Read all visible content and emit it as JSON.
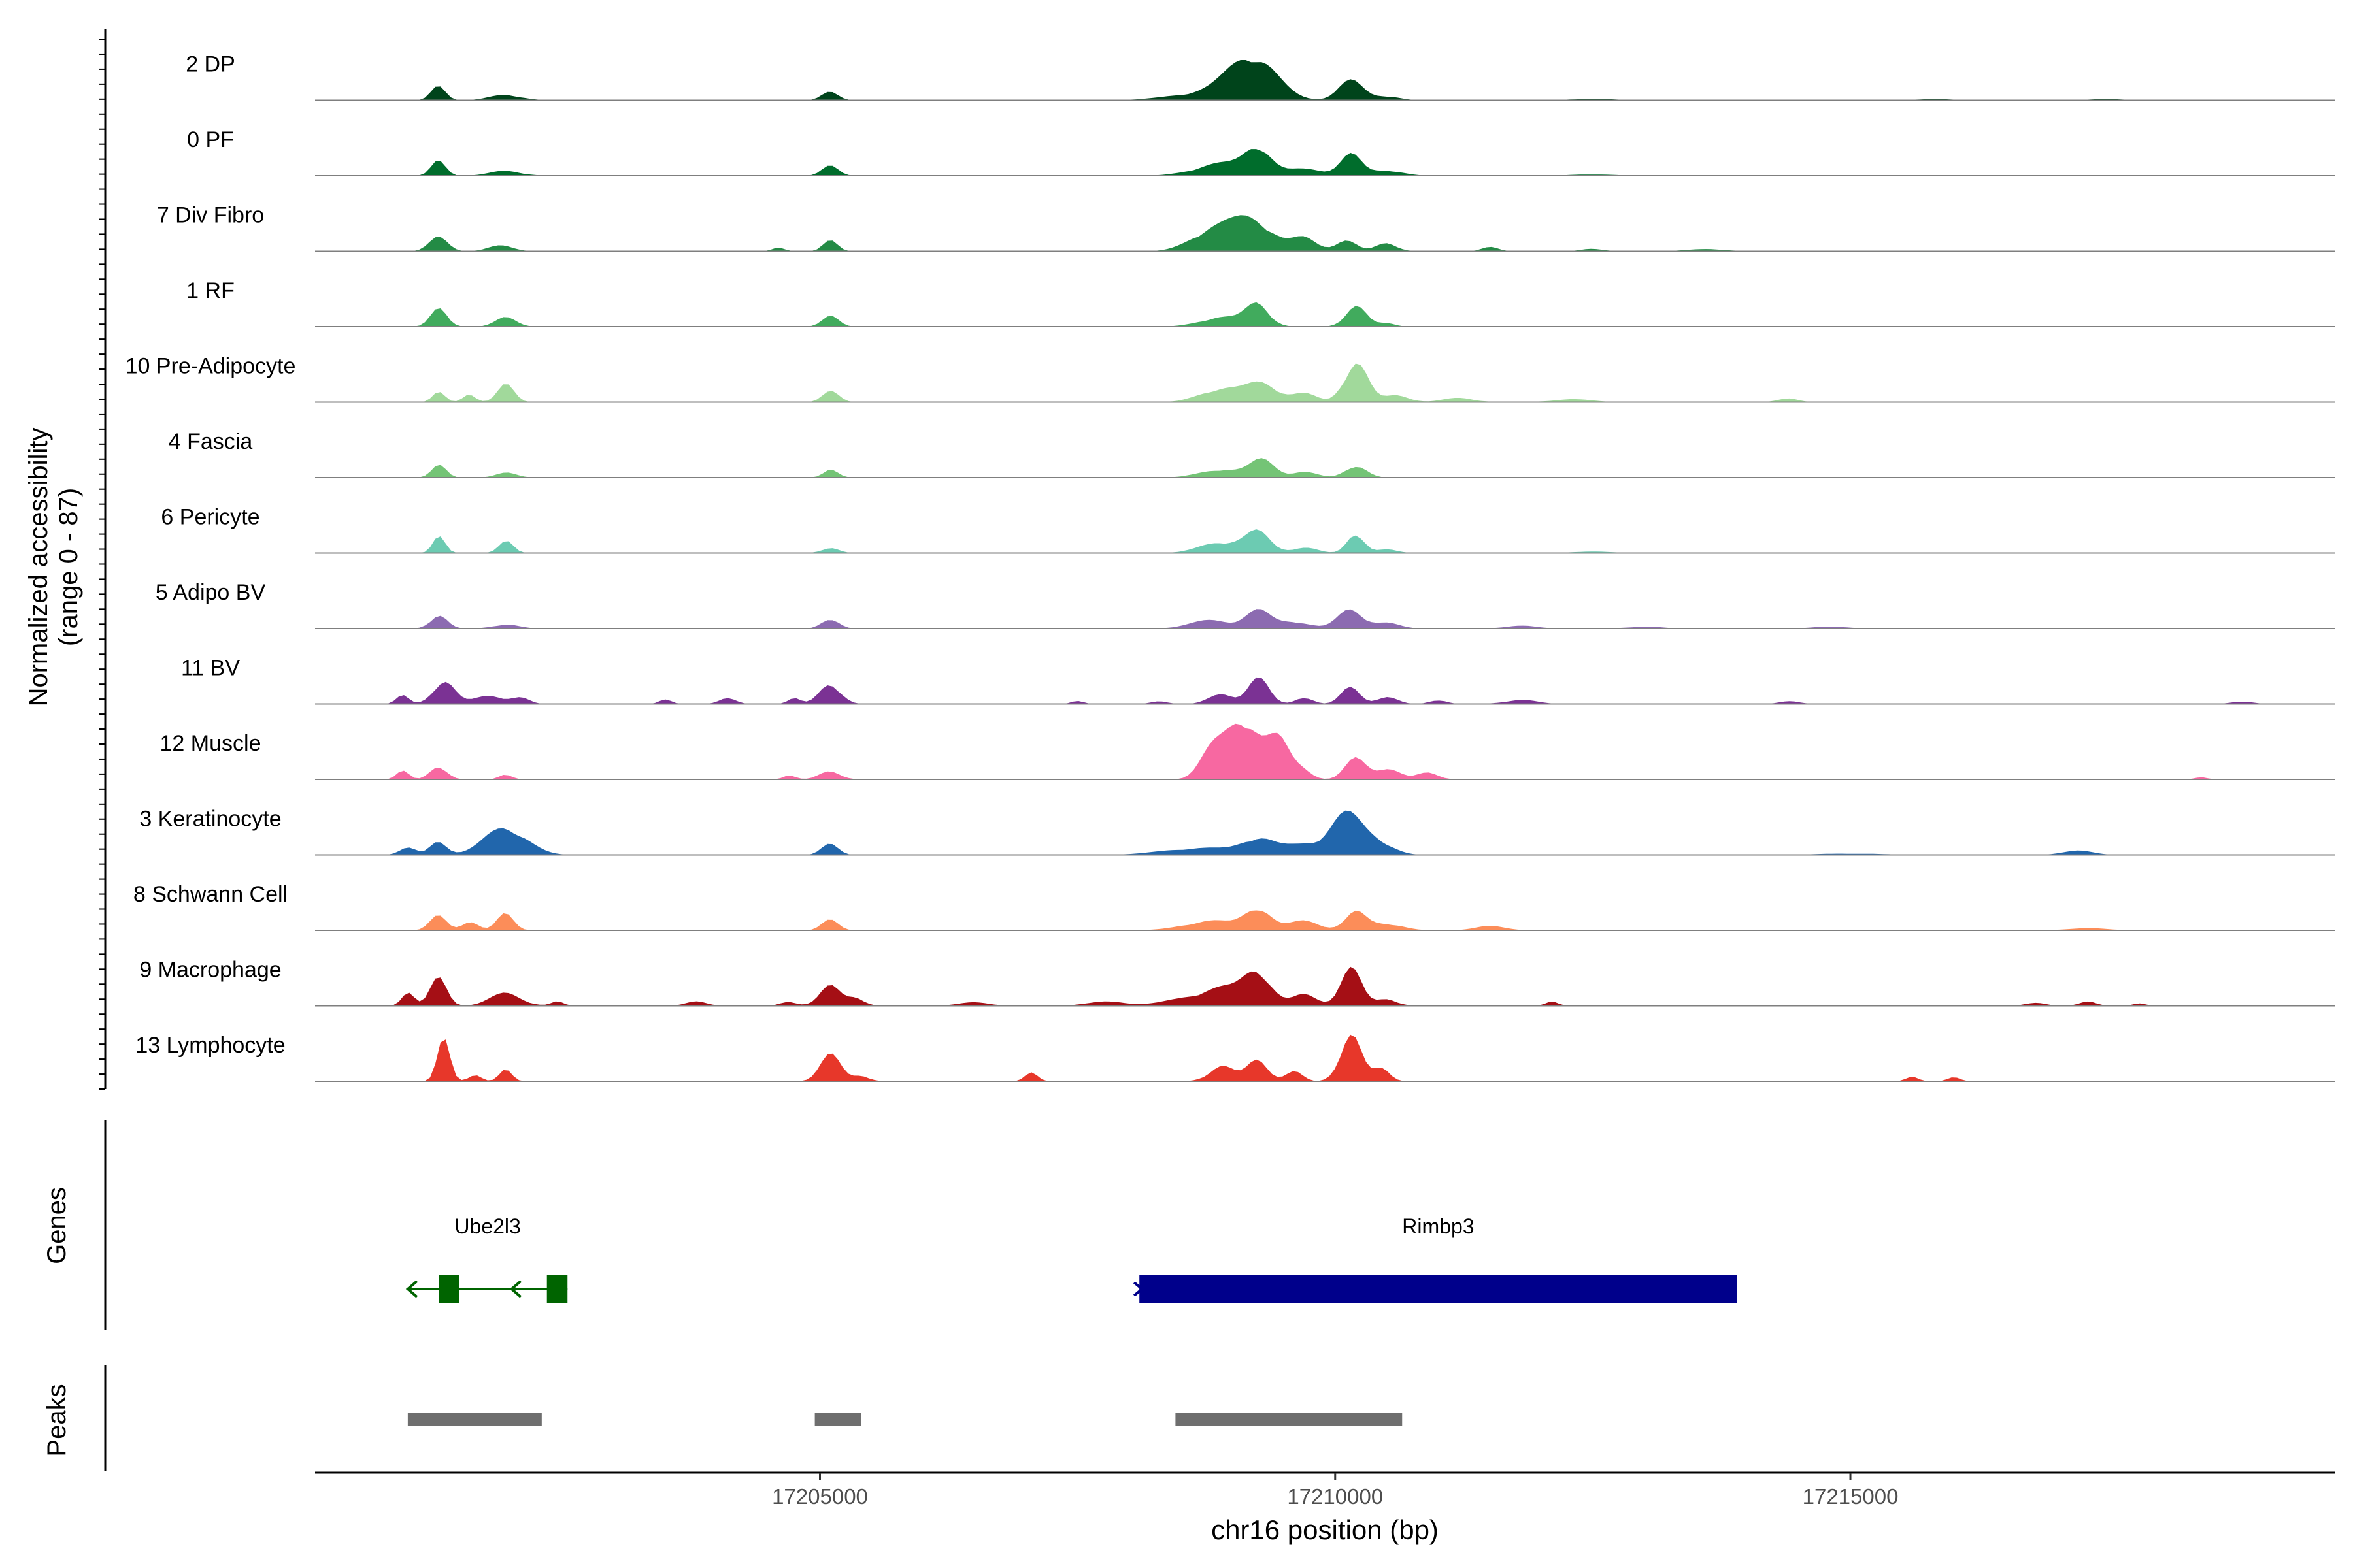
{
  "chart_data": {
    "type": "area",
    "title": "",
    "xlabel": "chr16 position (bp)",
    "ylabel_line1": "Normalized accessibility",
    "ylabel_line2": "(range 0 - 87)",
    "y_range": [
      0,
      87
    ],
    "xlim": [
      17200100,
      17219700
    ],
    "x_ticks": [
      17205000,
      17210000,
      17215000
    ],
    "x_tick_labels": [
      "17205000",
      "17210000",
      "17215000"
    ],
    "panel_labels": {
      "genes": "Genes",
      "peaks": "Peaks"
    },
    "tracks": [
      {
        "name": "2 DP",
        "color": "#00441b",
        "peaks": [
          [
            17201300,
            0.22,
            70
          ],
          [
            17201950,
            0.08,
            150
          ],
          [
            17205100,
            0.12,
            80
          ],
          [
            17208800,
            0.12,
            350
          ],
          [
            17209200,
            0.6,
            220
          ],
          [
            17210150,
            0.28,
            120
          ],
          [
            17210500,
            0.06,
            120
          ],
          [
            17212500,
            0.02,
            200
          ],
          [
            17215800,
            0.02,
            150
          ],
          [
            17217500,
            0.02,
            150
          ]
        ]
      },
      {
        "name": "0 PF",
        "color": "#006d2c",
        "peaks": [
          [
            17201300,
            0.22,
            70
          ],
          [
            17201950,
            0.07,
            150
          ],
          [
            17205100,
            0.14,
            80
          ],
          [
            17208900,
            0.18,
            250
          ],
          [
            17209250,
            0.38,
            120
          ],
          [
            17209700,
            0.1,
            200
          ],
          [
            17210150,
            0.3,
            100
          ],
          [
            17210500,
            0.08,
            150
          ],
          [
            17212500,
            0.02,
            200
          ]
        ]
      },
      {
        "name": "7 Div Fibro",
        "color": "#238b45",
        "peaks": [
          [
            17201300,
            0.2,
            90
          ],
          [
            17201900,
            0.08,
            120
          ],
          [
            17205100,
            0.15,
            70
          ],
          [
            17204600,
            0.05,
            60
          ],
          [
            17208800,
            0.3,
            200
          ],
          [
            17209200,
            0.45,
            200
          ],
          [
            17209700,
            0.18,
            120
          ],
          [
            17210100,
            0.16,
            100
          ],
          [
            17210500,
            0.12,
            100
          ],
          [
            17211500,
            0.06,
            80
          ],
          [
            17212500,
            0.04,
            100
          ],
          [
            17213600,
            0.03,
            200
          ]
        ]
      },
      {
        "name": "1 RF",
        "color": "#41ab5d",
        "peaks": [
          [
            17201300,
            0.25,
            80
          ],
          [
            17201950,
            0.13,
            100
          ],
          [
            17205100,
            0.15,
            80
          ],
          [
            17208900,
            0.14,
            200
          ],
          [
            17209250,
            0.32,
            110
          ],
          [
            17210200,
            0.3,
            100
          ],
          [
            17210500,
            0.05,
            80
          ]
        ]
      },
      {
        "name": "10 Pre-Adipocyte",
        "color": "#a1d99b",
        "peaks": [
          [
            17201300,
            0.14,
            60
          ],
          [
            17201600,
            0.12,
            60
          ],
          [
            17201950,
            0.25,
            80
          ],
          [
            17205100,
            0.16,
            80
          ],
          [
            17208900,
            0.2,
            200
          ],
          [
            17209300,
            0.26,
            150
          ],
          [
            17209700,
            0.12,
            120
          ],
          [
            17210200,
            0.6,
            110
          ],
          [
            17210600,
            0.1,
            120
          ],
          [
            17211200,
            0.06,
            150
          ],
          [
            17212300,
            0.04,
            200
          ],
          [
            17214400,
            0.05,
            100
          ]
        ]
      },
      {
        "name": "4 Fascia",
        "color": "#74c476",
        "peaks": [
          [
            17201300,
            0.18,
            70
          ],
          [
            17201950,
            0.07,
            100
          ],
          [
            17205100,
            0.12,
            70
          ],
          [
            17208900,
            0.12,
            200
          ],
          [
            17209300,
            0.25,
            120
          ],
          [
            17209700,
            0.08,
            120
          ],
          [
            17210200,
            0.18,
            100
          ]
        ]
      },
      {
        "name": "6 Pericyte",
        "color": "#6ccbb2",
        "peaks": [
          [
            17201300,
            0.25,
            60
          ],
          [
            17201950,
            0.18,
            70
          ],
          [
            17205100,
            0.08,
            80
          ],
          [
            17208900,
            0.16,
            200
          ],
          [
            17209250,
            0.28,
            120
          ],
          [
            17209700,
            0.08,
            120
          ],
          [
            17210200,
            0.3,
            80
          ],
          [
            17210500,
            0.05,
            100
          ],
          [
            17212500,
            0.02,
            200
          ]
        ]
      },
      {
        "name": "5 Adipo BV",
        "color": "#8c6bb1",
        "peaks": [
          [
            17201300,
            0.2,
            80
          ],
          [
            17201950,
            0.06,
            120
          ],
          [
            17205100,
            0.15,
            80
          ],
          [
            17208800,
            0.12,
            200
          ],
          [
            17209250,
            0.25,
            120
          ],
          [
            17209600,
            0.1,
            150
          ],
          [
            17210150,
            0.28,
            120
          ],
          [
            17210500,
            0.08,
            120
          ],
          [
            17211800,
            0.04,
            150
          ],
          [
            17213000,
            0.03,
            150
          ],
          [
            17214800,
            0.03,
            150
          ]
        ]
      },
      {
        "name": "11 BV",
        "color": "#7b3294",
        "peaks": [
          [
            17201350,
            0.35,
            100
          ],
          [
            17200950,
            0.12,
            60
          ],
          [
            17201800,
            0.12,
            150
          ],
          [
            17202100,
            0.08,
            80
          ],
          [
            17203500,
            0.06,
            60
          ],
          [
            17204100,
            0.08,
            80
          ],
          [
            17205100,
            0.3,
            100
          ],
          [
            17204750,
            0.08,
            60
          ],
          [
            17207500,
            0.04,
            60
          ],
          [
            17208300,
            0.04,
            80
          ],
          [
            17208900,
            0.14,
            120
          ],
          [
            17209250,
            0.38,
            100
          ],
          [
            17209700,
            0.1,
            80
          ],
          [
            17210150,
            0.24,
            90
          ],
          [
            17210500,
            0.1,
            100
          ],
          [
            17211000,
            0.06,
            80
          ],
          [
            17211800,
            0.06,
            150
          ],
          [
            17214400,
            0.04,
            100
          ],
          [
            17218800,
            0.04,
            100
          ]
        ]
      },
      {
        "name": "12 Muscle",
        "color": "#f768a1",
        "peaks": [
          [
            17200950,
            0.12,
            60
          ],
          [
            17201300,
            0.2,
            80
          ],
          [
            17201950,
            0.08,
            60
          ],
          [
            17205100,
            0.12,
            100
          ],
          [
            17204700,
            0.06,
            60
          ],
          [
            17208800,
            0.38,
            120
          ],
          [
            17209100,
            0.9,
            150
          ],
          [
            17209450,
            0.55,
            120
          ],
          [
            17209700,
            0.12,
            80
          ],
          [
            17210200,
            0.3,
            100
          ],
          [
            17210500,
            0.16,
            120
          ],
          [
            17210900,
            0.1,
            100
          ],
          [
            17218400,
            0.03,
            60
          ]
        ]
      },
      {
        "name": "3 Keratinocyte",
        "color": "#2166ac",
        "peaks": [
          [
            17201000,
            0.1,
            80
          ],
          [
            17201300,
            0.2,
            80
          ],
          [
            17201950,
            0.4,
            200
          ],
          [
            17205100,
            0.16,
            80
          ],
          [
            17208700,
            0.1,
            350
          ],
          [
            17209250,
            0.22,
            150
          ],
          [
            17209700,
            0.15,
            200
          ],
          [
            17210100,
            0.55,
            150
          ],
          [
            17210400,
            0.2,
            150
          ],
          [
            17217200,
            0.06,
            150
          ],
          [
            17215000,
            0.02,
            300
          ]
        ]
      },
      {
        "name": "8 Schwann Cell",
        "color": "#fc8d59",
        "peaks": [
          [
            17201300,
            0.22,
            80
          ],
          [
            17201600,
            0.12,
            80
          ],
          [
            17201950,
            0.25,
            80
          ],
          [
            17205100,
            0.15,
            80
          ],
          [
            17208800,
            0.14,
            250
          ],
          [
            17209250,
            0.32,
            120
          ],
          [
            17209700,
            0.14,
            150
          ],
          [
            17210200,
            0.25,
            100
          ],
          [
            17210500,
            0.1,
            150
          ],
          [
            17211500,
            0.06,
            150
          ],
          [
            17217300,
            0.03,
            200
          ]
        ]
      },
      {
        "name": "9 Macrophage",
        "color": "#a50f15",
        "peaks": [
          [
            17201000,
            0.2,
            60
          ],
          [
            17201300,
            0.4,
            80
          ],
          [
            17201950,
            0.18,
            150
          ],
          [
            17202450,
            0.06,
            60
          ],
          [
            17203800,
            0.06,
            100
          ],
          [
            17204700,
            0.06,
            80
          ],
          [
            17205100,
            0.28,
            100
          ],
          [
            17205350,
            0.12,
            80
          ],
          [
            17206500,
            0.05,
            150
          ],
          [
            17207800,
            0.06,
            200
          ],
          [
            17208500,
            0.08,
            200
          ],
          [
            17208900,
            0.25,
            200
          ],
          [
            17209250,
            0.48,
            130
          ],
          [
            17209700,
            0.16,
            120
          ],
          [
            17210150,
            0.55,
            100
          ],
          [
            17210500,
            0.1,
            100
          ],
          [
            17212100,
            0.06,
            60
          ],
          [
            17216800,
            0.04,
            100
          ],
          [
            17217300,
            0.06,
            80
          ],
          [
            17217800,
            0.04,
            60
          ]
        ]
      },
      {
        "name": "13 Lymphocyte",
        "color": "#e7372a",
        "peaks": [
          [
            17201350,
            0.6,
            60
          ],
          [
            17201650,
            0.1,
            60
          ],
          [
            17201950,
            0.16,
            60
          ],
          [
            17205100,
            0.38,
            100
          ],
          [
            17205400,
            0.08,
            80
          ],
          [
            17207050,
            0.12,
            60
          ],
          [
            17208900,
            0.22,
            120
          ],
          [
            17209250,
            0.32,
            100
          ],
          [
            17209600,
            0.14,
            80
          ],
          [
            17210150,
            0.7,
            100
          ],
          [
            17210450,
            0.18,
            80
          ],
          [
            17215600,
            0.06,
            60
          ],
          [
            17216000,
            0.06,
            60
          ]
        ]
      }
    ],
    "genes": [
      {
        "name": "Ube2l3",
        "color": "#006400",
        "strand": "-",
        "start": 17201000,
        "end": 17202550,
        "exons": [
          [
            17201300,
            17201500
          ],
          [
            17202350,
            17202550
          ]
        ]
      },
      {
        "name": "Rimbp3",
        "color": "#00008b",
        "strand": "+",
        "start": 17208100,
        "end": 17213900,
        "exons": [
          [
            17208100,
            17213900
          ]
        ]
      }
    ],
    "peaks": [
      [
        17201000,
        17202300
      ],
      [
        17204950,
        17205400
      ],
      [
        17208450,
        17210650
      ]
    ]
  }
}
